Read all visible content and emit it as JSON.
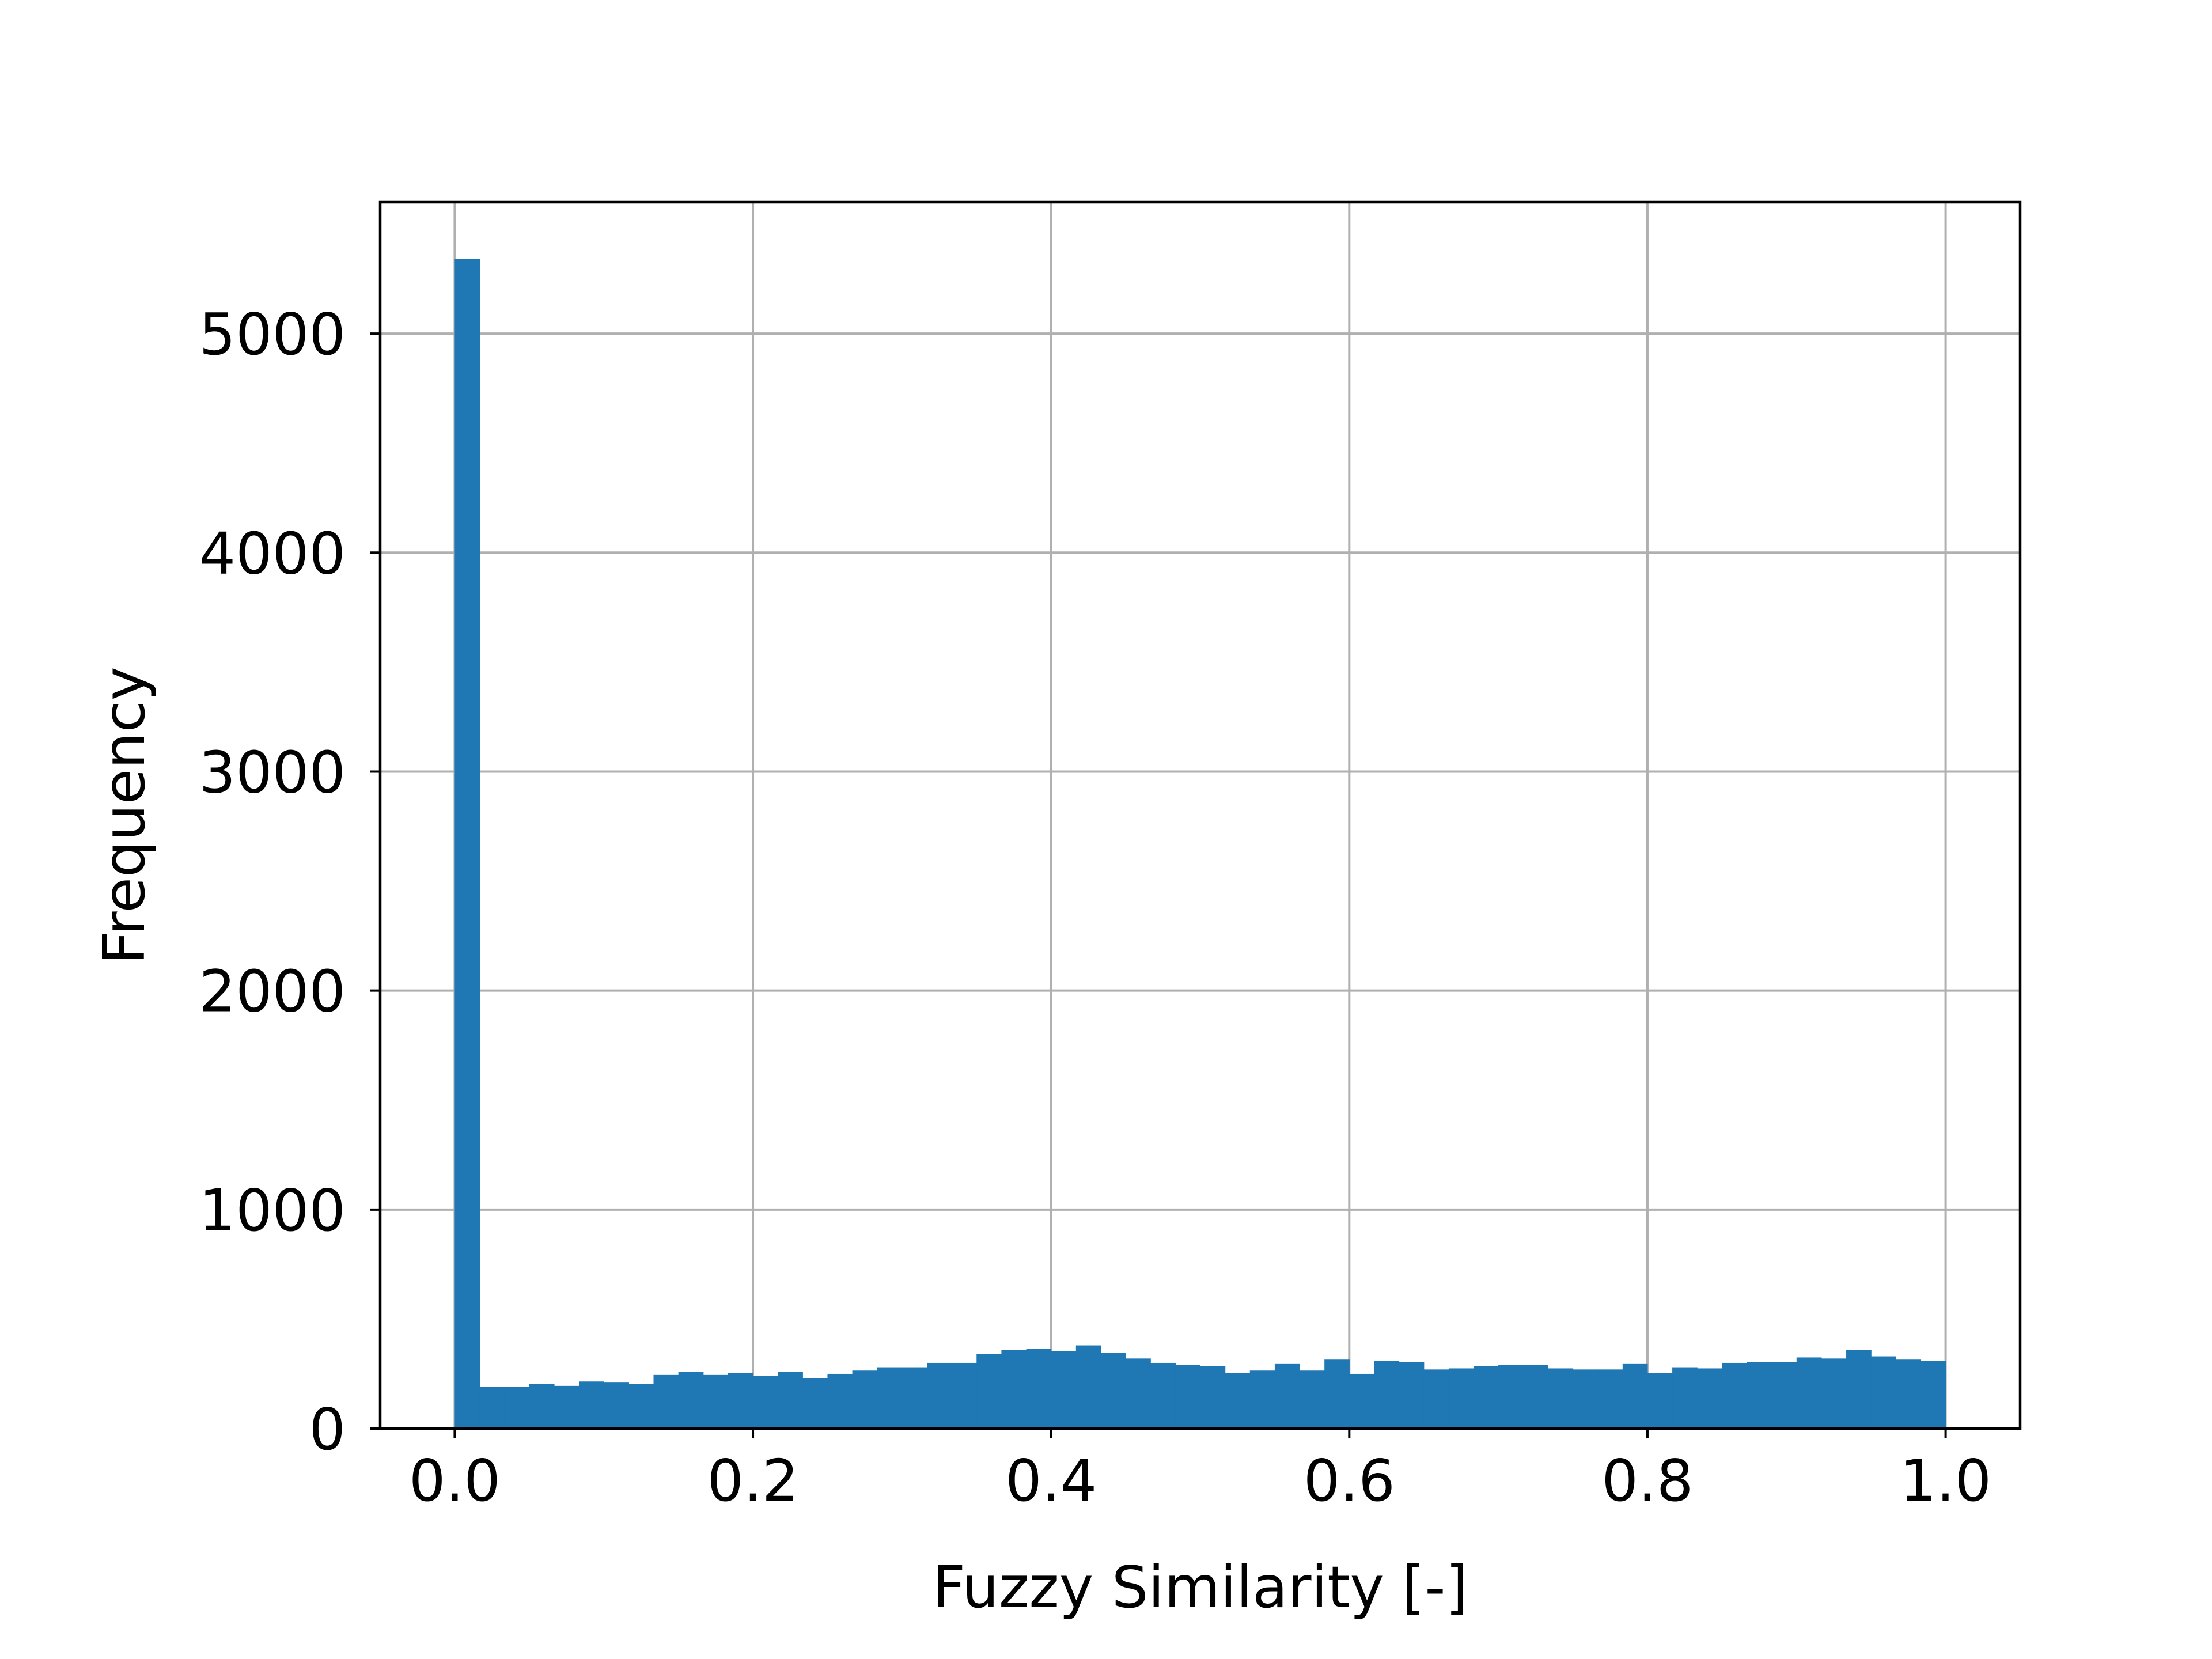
{
  "chart_data": {
    "type": "bar",
    "xlabel": "Fuzzy Similarity [-]",
    "ylabel": "Frequency",
    "xlim": [
      -0.05,
      1.05
    ],
    "ylim": [
      0,
      5600
    ],
    "grid": true,
    "bar_color": "#1f77b4",
    "bin_edges_range": [
      0.0,
      1.0
    ],
    "bins": 60,
    "values": [
      5340,
      190,
      190,
      205,
      195,
      215,
      210,
      205,
      245,
      260,
      245,
      255,
      240,
      260,
      230,
      250,
      265,
      280,
      280,
      300,
      300,
      340,
      360,
      365,
      355,
      380,
      345,
      320,
      300,
      290,
      285,
      255,
      265,
      295,
      265,
      315,
      250,
      310,
      305,
      270,
      275,
      285,
      290,
      290,
      275,
      270,
      270,
      295,
      255,
      280,
      275,
      300,
      305,
      305,
      325,
      320,
      360,
      330,
      315,
      310
    ],
    "x_ticks": [
      0.0,
      0.2,
      0.4,
      0.6,
      0.8,
      1.0
    ],
    "x_tick_labels": [
      "0.0",
      "0.2",
      "0.4",
      "0.6",
      "0.8",
      "1.0"
    ],
    "y_ticks": [
      0,
      1000,
      2000,
      3000,
      4000,
      5000
    ],
    "y_tick_labels": [
      "0",
      "1000",
      "2000",
      "3000",
      "4000",
      "5000"
    ]
  }
}
